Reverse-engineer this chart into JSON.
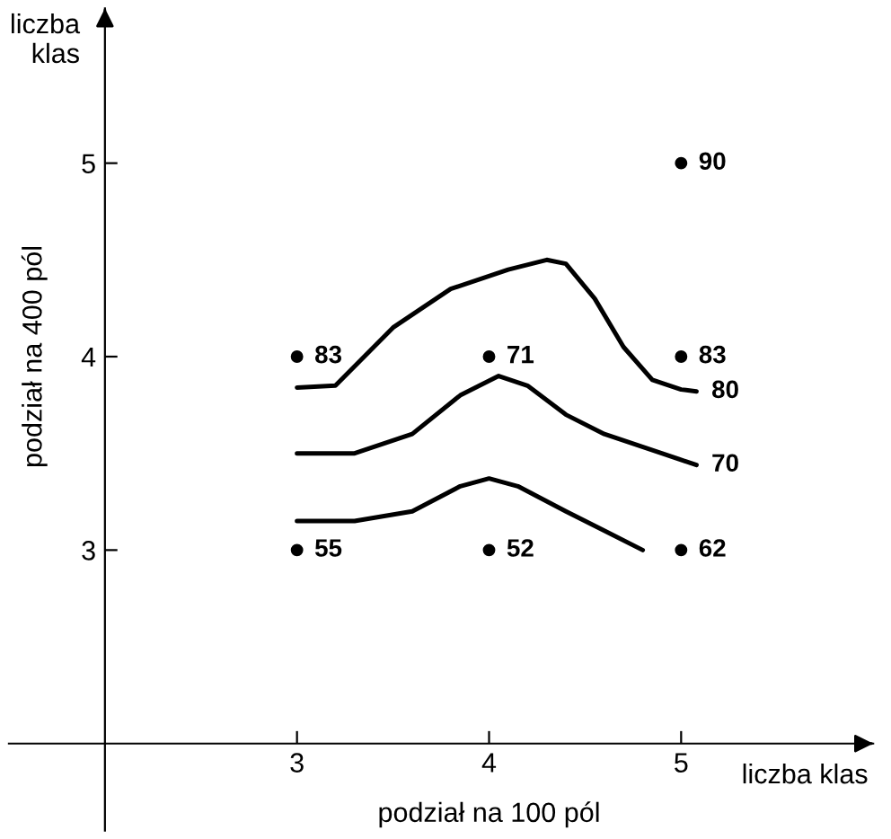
{
  "chart_data": {
    "type": "scatter",
    "xlabel": "podział na 100 pól",
    "ylabel": "podział na 400 pól",
    "annotations": [
      "liczba\nklas",
      "liczba klas",
      {
        "text": "83",
        "x": 3,
        "y": 4
      },
      {
        "text": "71",
        "x": 4,
        "y": 4
      },
      {
        "text": "83",
        "x": 5,
        "y": 4
      },
      {
        "text": "90",
        "x": 5,
        "y": 5
      },
      {
        "text": "55",
        "x": 3,
        "y": 3
      },
      {
        "text": "52",
        "x": 4,
        "y": 3
      },
      {
        "text": "62",
        "x": 5,
        "y": 3
      }
    ],
    "xlim": [
      1.5,
      6.0
    ],
    "ylim": [
      1.55,
      5.8
    ],
    "xticks": [
      3,
      4,
      5
    ],
    "yticks": [
      3,
      4,
      5
    ],
    "grid": false,
    "series": [
      {
        "color": "#000000",
        "marker": "circle",
        "x": [
          3,
          4,
          5,
          5,
          3,
          4,
          5
        ],
        "values": [
          4,
          4,
          4,
          5,
          3,
          3,
          3
        ]
      },
      {
        "type": "line",
        "name": "80",
        "color": "#000000",
        "marker": "none",
        "line_style": "solid",
        "x": [
          3,
          3.2,
          3.3,
          3.5,
          3.8,
          4.1,
          4.3,
          4.4,
          4.55,
          4.7,
          4.85,
          5,
          5.08
        ],
        "values": [
          3.84,
          3.85,
          3.95,
          4.15,
          4.35,
          4.45,
          4.5,
          4.48,
          4.3,
          4.05,
          3.88,
          3.83,
          3.82
        ]
      },
      {
        "type": "line",
        "name": "70",
        "color": "#000000",
        "marker": "none",
        "line_style": "solid",
        "x": [
          3,
          3.3,
          3.6,
          3.85,
          4.05,
          4.2,
          4.4,
          4.6,
          5.08
        ],
        "values": [
          3.5,
          3.5,
          3.6,
          3.8,
          3.9,
          3.85,
          3.7,
          3.6,
          3.44
        ]
      },
      {
        "type": "line",
        "color": "#000000",
        "marker": "none",
        "line_style": "solid",
        "x": [
          3,
          3.3,
          3.6,
          3.85,
          4.0,
          4.15,
          4.4,
          4.6,
          4.8
        ],
        "values": [
          3.15,
          3.15,
          3.2,
          3.33,
          3.37,
          3.33,
          3.2,
          3.1,
          3.0
        ]
      }
    ]
  }
}
